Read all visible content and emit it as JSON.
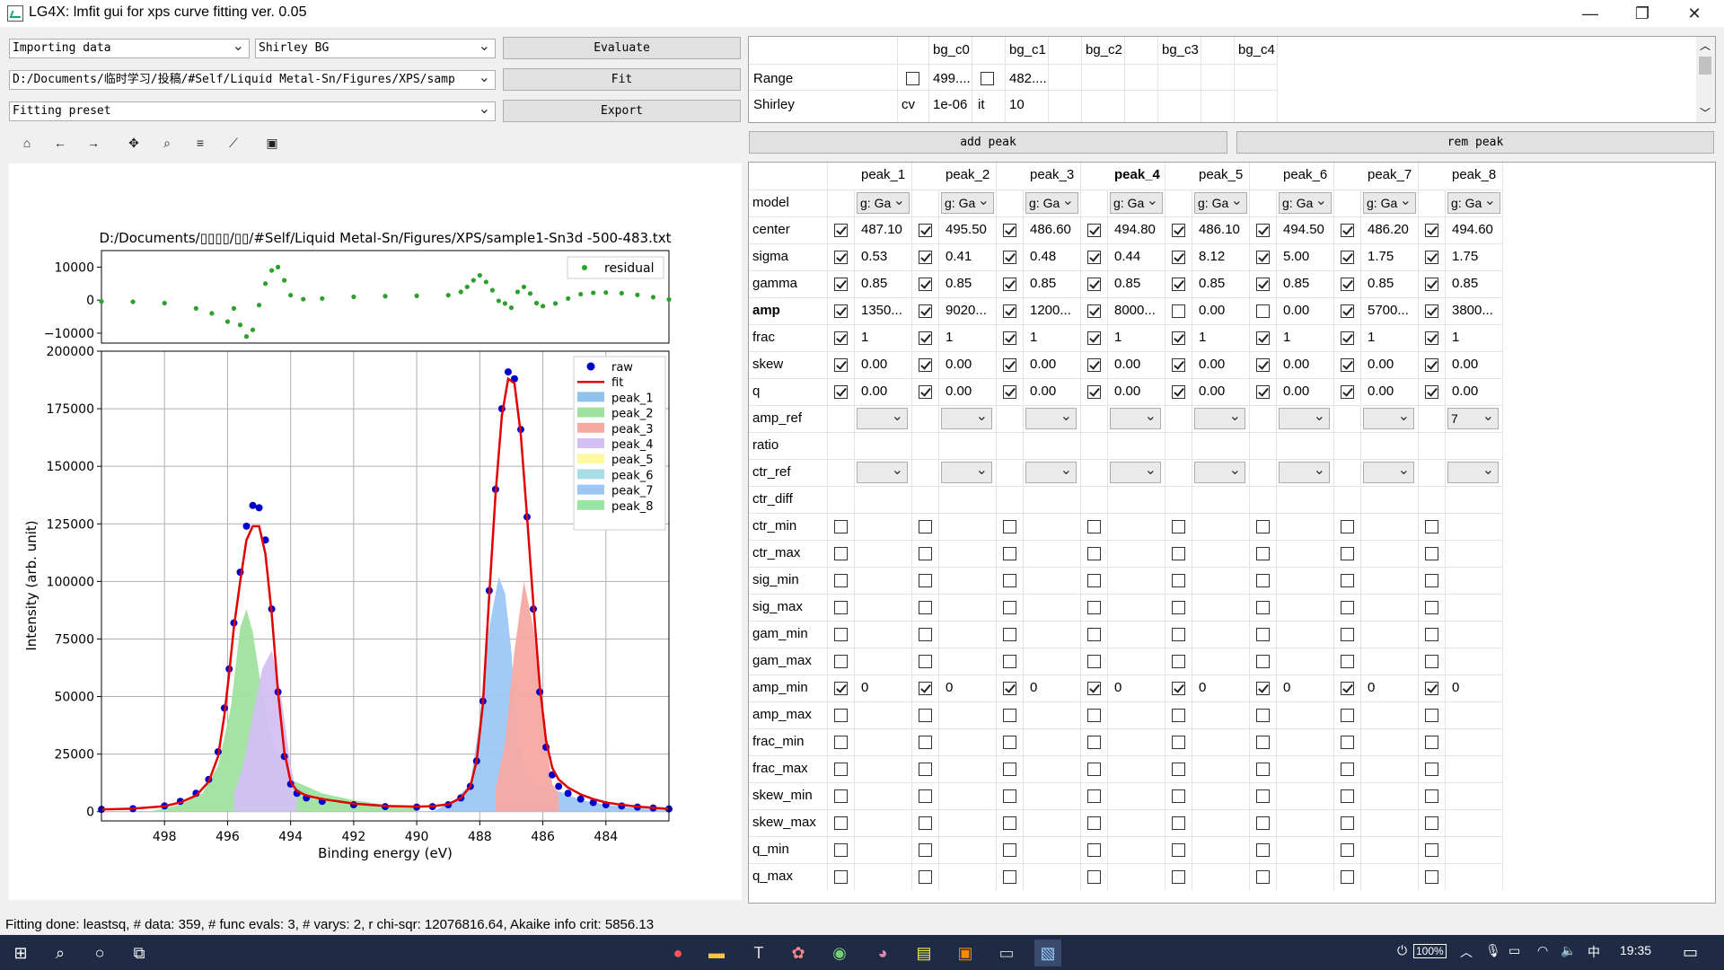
{
  "window": {
    "title": "LG4X: lmfit gui for xps curve fitting ver. 0.05",
    "minimize": "—",
    "maximize": "❐",
    "close": "✕"
  },
  "controls": {
    "import_combo": "Importing data",
    "bg_combo": "Shirley BG",
    "file_combo": "D:/Documents/临时学习/投稿/#Self/Liquid Metal-Sn/Figures/XPS/samp",
    "preset_combo": "Fitting preset",
    "evaluate": "Evaluate",
    "fit": "Fit",
    "export": "Export",
    "add_peak": "add peak",
    "rem_peak": "rem peak"
  },
  "toolbar": [
    {
      "name": "home-icon",
      "glyph": "⌂"
    },
    {
      "name": "back-arrow-icon",
      "glyph": "←"
    },
    {
      "name": "forward-arrow-icon",
      "glyph": "→"
    },
    {
      "name": "pan-icon",
      "glyph": "✥"
    },
    {
      "name": "zoom-icon",
      "glyph": "⌕"
    },
    {
      "name": "configure-subplots-icon",
      "glyph": "≡"
    },
    {
      "name": "edit-axis-icon",
      "glyph": "⟋"
    },
    {
      "name": "save-icon",
      "glyph": "▣"
    }
  ],
  "bg_table": {
    "headers": [
      "bg_c0",
      "bg_c1",
      "bg_c2",
      "bg_c3",
      "bg_c4"
    ],
    "rows": [
      {
        "label": "Range",
        "c0_checked": false,
        "c0": "499....",
        "c1_checked": false,
        "c1": "482...."
      },
      {
        "label": "Shirley",
        "c0_pre": "cv",
        "c0": "1e-06",
        "c1_pre": "it",
        "c1": "10"
      }
    ]
  },
  "peak_table": {
    "headers": [
      "peak_1",
      "peak_2",
      "peak_3",
      "peak_4",
      "peak_5",
      "peak_6",
      "peak_7",
      "peak_8"
    ],
    "row_labels": [
      "model",
      "center",
      "sigma",
      "gamma",
      "amp",
      "frac",
      "skew",
      "q",
      "amp_ref",
      "ratio",
      "ctr_ref",
      "ctr_diff",
      "ctr_min",
      "ctr_max",
      "sig_min",
      "sig_max",
      "gam_min",
      "gam_max",
      "amp_min",
      "amp_max",
      "frac_min",
      "frac_max",
      "skew_min",
      "skew_max",
      "q_min",
      "q_max"
    ],
    "model_value": "g: Ga",
    "center": [
      "487.10",
      "495.50",
      "486.60",
      "494.80",
      "486.10",
      "494.50",
      "486.20",
      "494.60"
    ],
    "sigma": [
      "0.53",
      "0.41",
      "0.48",
      "0.44",
      "8.12",
      "5.00",
      "1.75",
      "1.75"
    ],
    "gamma": [
      "0.85",
      "0.85",
      "0.85",
      "0.85",
      "0.85",
      "0.85",
      "0.85",
      "0.85"
    ],
    "amp": [
      "1350...",
      "9020...",
      "1200...",
      "8000...",
      "0.00",
      "0.00",
      "5700...",
      "3800..."
    ],
    "amp_checked": [
      true,
      true,
      true,
      true,
      false,
      false,
      true,
      true
    ],
    "frac": [
      "1",
      "1",
      "1",
      "1",
      "1",
      "1",
      "1",
      "1"
    ],
    "skew": [
      "0.00",
      "0.00",
      "0.00",
      "0.00",
      "0.00",
      "0.00",
      "0.00",
      "0.00"
    ],
    "q": [
      "0.00",
      "0.00",
      "0.00",
      "0.00",
      "0.00",
      "0.00",
      "0.00",
      "0.00"
    ],
    "amp_ref": [
      "",
      "",
      "",
      "",
      "",
      "",
      "",
      "7"
    ],
    "amp_min": [
      "0",
      "0",
      "0",
      "0",
      "0",
      "0",
      "0",
      "0"
    ]
  },
  "status": "Fitting done: leastsq, # data: 359, # func evals: 3, # varys: 2, r chi-sqr: 12076816.64, Akaike info crit: 5856.13",
  "taskbar": {
    "battery": "100%",
    "ime": "中",
    "clock": "19:35"
  },
  "chart_data": [
    {
      "type": "scatter",
      "title": "",
      "xlabel": "",
      "ylabel": "",
      "legend": [
        "residual"
      ],
      "legend_position": "top-right",
      "x_inverted": true,
      "xlim": [
        500,
        482
      ],
      "ylim": [
        -13000,
        15000
      ],
      "yticks": [
        10000,
        0,
        -10000
      ],
      "ytick_labels": [
        "10000",
        "0",
        "−10000"
      ],
      "grid": false,
      "series": [
        {
          "name": "residual",
          "color": "#2ca02c",
          "x": [
            500,
            499,
            498,
            497,
            496.5,
            496,
            495.8,
            495.6,
            495.4,
            495.2,
            495.0,
            494.8,
            494.6,
            494.4,
            494.2,
            494.0,
            493.6,
            493,
            492,
            491,
            490,
            489,
            488.6,
            488.4,
            488.2,
            488.0,
            487.8,
            487.6,
            487.4,
            487.2,
            487,
            486.8,
            486.6,
            486.4,
            486.2,
            486,
            485.6,
            485.2,
            484.8,
            484.4,
            484,
            483.5,
            483,
            482.5,
            482
          ],
          "y": [
            -400,
            -500,
            -900,
            -2500,
            -4000,
            -6500,
            -2500,
            -7500,
            -11000,
            -9000,
            -1500,
            5000,
            9000,
            10000,
            6000,
            1500,
            300,
            500,
            1000,
            1200,
            1300,
            1500,
            2500,
            4000,
            6000,
            7500,
            5500,
            3000,
            -200,
            -1000,
            -2300,
            2500,
            4000,
            2000,
            -900,
            -1800,
            -1000,
            500,
            1800,
            2200,
            2300,
            2100,
            1600,
            900,
            200
          ]
        }
      ]
    },
    {
      "type": "line",
      "title": "D:/Documents/▯▯▯▯/▯▯/#Self/Liquid Metal-Sn/Figures/XPS/sample1-Sn3d -500-483.txt",
      "xlabel": "Binding energy (eV)",
      "ylabel": "Intensity (arb. unit)",
      "x_inverted": true,
      "xlim": [
        500,
        482
      ],
      "ylim": [
        -4000,
        200000
      ],
      "xticks": [
        498,
        496,
        494,
        492,
        490,
        488,
        486,
        484
      ],
      "yticks": [
        0,
        25000,
        50000,
        75000,
        100000,
        125000,
        150000,
        175000,
        200000
      ],
      "grid": true,
      "legend": [
        "raw",
        "fit",
        "peak_1",
        "peak_2",
        "peak_3",
        "peak_4",
        "peak_5",
        "peak_6",
        "peak_7",
        "peak_8"
      ],
      "legend_position": "top-right",
      "legend_colors": [
        "#0000cc",
        "#e00000",
        "#8fc3ee",
        "#9fe29f",
        "#f6a9a3",
        "#d2c0f2",
        "#fffaa0",
        "#a6dde6",
        "#9cc7f5",
        "#98e6a4"
      ],
      "raw_points": {
        "x": [
          500,
          499,
          498,
          497.5,
          497,
          496.6,
          496.3,
          496.1,
          495.95,
          495.8,
          495.6,
          495.4,
          495.2,
          495.0,
          494.8,
          494.6,
          494.4,
          494.2,
          494.0,
          493.8,
          493.5,
          493,
          492,
          491,
          490,
          489.5,
          489,
          488.6,
          488.3,
          488.1,
          487.9,
          487.7,
          487.5,
          487.3,
          487.1,
          486.9,
          486.7,
          486.5,
          486.3,
          486.1,
          485.9,
          485.7,
          485.5,
          485.2,
          484.8,
          484.4,
          484,
          483.5,
          483,
          482.5,
          482
        ],
        "y": [
          1000,
          1300,
          2500,
          4500,
          8000,
          14000,
          26000,
          45000,
          62000,
          82000,
          104000,
          124000,
          133000,
          132000,
          118000,
          88000,
          52000,
          24000,
          12000,
          8000,
          6000,
          4500,
          3000,
          2200,
          2000,
          2200,
          3000,
          6000,
          11000,
          22000,
          48000,
          96000,
          140000,
          175000,
          191000,
          188000,
          166000,
          128000,
          88000,
          52000,
          28000,
          16000,
          11000,
          8000,
          5500,
          4000,
          3000,
          2500,
          2000,
          1600,
          1200
        ]
      },
      "fit_points": {
        "x": [
          500,
          499,
          498,
          497.5,
          497,
          496.6,
          496.3,
          496.1,
          495.95,
          495.8,
          495.6,
          495.4,
          495.2,
          495.0,
          494.8,
          494.6,
          494.4,
          494.2,
          494.0,
          493.8,
          493.5,
          493,
          492,
          491,
          490,
          489.5,
          489,
          488.6,
          488.3,
          488.1,
          487.9,
          487.7,
          487.5,
          487.3,
          487.1,
          486.9,
          486.7,
          486.5,
          486.3,
          486.1,
          485.9,
          485.7,
          485.5,
          485.2,
          484.8,
          484.4,
          484,
          483.5,
          483,
          482.5,
          482
        ],
        "y": [
          1000,
          1300,
          2400,
          4000,
          7000,
          13000,
          24000,
          42000,
          60000,
          80000,
          100000,
          118000,
          124000,
          124000,
          112000,
          86000,
          52000,
          26000,
          13000,
          9000,
          7000,
          5500,
          3500,
          2500,
          2200,
          2400,
          3200,
          6000,
          11000,
          22000,
          47000,
          94000,
          138000,
          172000,
          188000,
          186000,
          164000,
          128000,
          90000,
          55000,
          31000,
          19000,
          14000,
          10500,
          7500,
          5500,
          4000,
          3000,
          2200,
          1700,
          1200
        ]
      },
      "filled_peaks": [
        {
          "name": "peak_2",
          "color": "#9fe29f",
          "x": [
            498.5,
            497.5,
            496.8,
            496.3,
            495.9,
            495.6,
            495.4,
            495.2,
            495.0,
            494.6,
            494.0,
            493,
            492,
            491,
            490
          ],
          "y": [
            0,
            3000,
            8000,
            20000,
            45000,
            80000,
            88000,
            78000,
            60000,
            30000,
            14000,
            8000,
            5000,
            3000,
            2000
          ]
        },
        {
          "name": "peak_4",
          "color": "#d2c0f2",
          "x": [
            495.8,
            495.5,
            495.2,
            494.9,
            494.6,
            494.3,
            494.0,
            493.8
          ],
          "y": [
            8000,
            20000,
            42000,
            62000,
            70000,
            50000,
            20000,
            8000
          ]
        },
        {
          "name": "peak_7",
          "color": "#9cc7f5",
          "x": [
            489.5,
            488.8,
            488.3,
            488.0,
            487.7,
            487.4,
            487.2,
            487.0,
            486.8,
            486.5,
            486.2,
            485.8,
            485.3,
            484.8,
            484.0,
            483,
            482
          ],
          "y": [
            0,
            5000,
            12000,
            40000,
            80000,
            102000,
            95000,
            70000,
            30000,
            15000,
            11000,
            10000,
            8000,
            5000,
            3000,
            1500,
            800
          ]
        },
        {
          "name": "peak_3",
          "color": "#f6a9a3",
          "x": [
            487.5,
            487.2,
            486.9,
            486.6,
            486.3,
            486.0,
            485.7,
            485.5
          ],
          "y": [
            10000,
            30000,
            70000,
            100000,
            80000,
            40000,
            12000,
            8000
          ]
        }
      ]
    }
  ]
}
